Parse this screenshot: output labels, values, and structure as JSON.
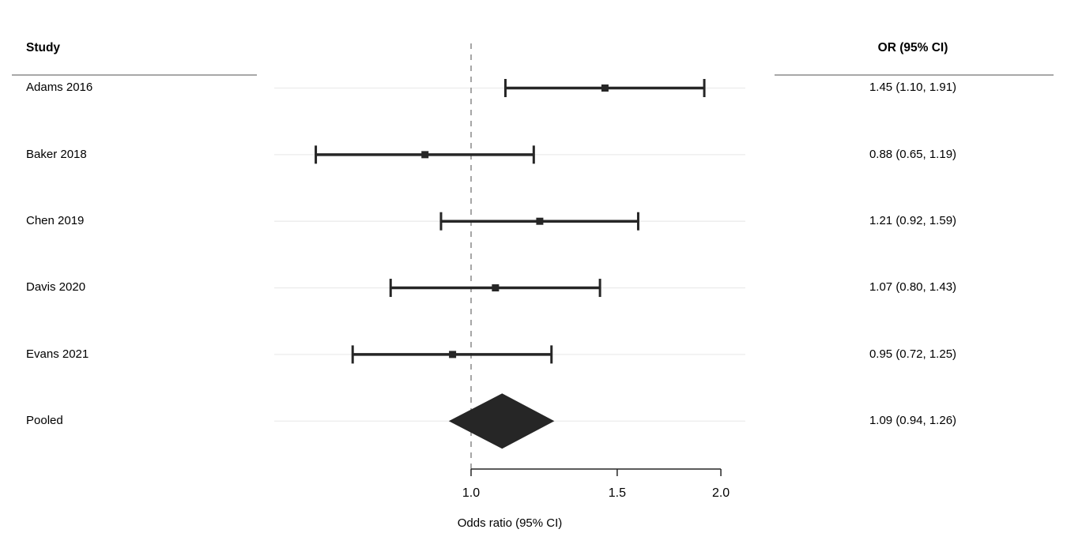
{
  "chart_data": {
    "type": "forest",
    "xlabel": "Odds ratio (95% CI)",
    "x_scale": "log",
    "x_range": [
      1.0,
      2.0
    ],
    "reference_line": 1.0,
    "x_ticks": [
      {
        "value": 1.0,
        "label": "1.0"
      },
      {
        "value": 1.5,
        "label": "1.5"
      },
      {
        "value": 2.0,
        "label": "2.0"
      }
    ],
    "columns": {
      "study_header": "Study",
      "or_header": "OR (95% CI)"
    },
    "rows": [
      {
        "study": "Adams 2016",
        "type": "study",
        "or": 1.45,
        "ci_low": 1.1,
        "ci_high": 1.91,
        "or_label": "1.45 (1.10, 1.91)"
      },
      {
        "study": "Baker 2018",
        "type": "study",
        "or": 0.88,
        "ci_low": 0.65,
        "ci_high": 1.19,
        "or_label": "0.88 (0.65, 1.19)"
      },
      {
        "study": "Chen 2019",
        "type": "study",
        "or": 1.21,
        "ci_low": 0.92,
        "ci_high": 1.59,
        "or_label": "1.21 (0.92, 1.59)"
      },
      {
        "study": "Davis 2020",
        "type": "study",
        "or": 1.07,
        "ci_low": 0.8,
        "ci_high": 1.43,
        "or_label": "1.07 (0.80, 1.43)"
      },
      {
        "study": "Evans 2021",
        "type": "study",
        "or": 0.95,
        "ci_low": 0.72,
        "ci_high": 1.25,
        "or_label": "0.95 (0.72, 1.25)"
      },
      {
        "study": "Pooled",
        "type": "pooled",
        "or": 1.09,
        "ci_low": 0.94,
        "ci_high": 1.26,
        "or_label": "1.09 (0.94, 1.26)"
      }
    ],
    "colors": {
      "ci": "#262626",
      "diamond": "#262626",
      "grid": "#ececec",
      "reference": "#909090",
      "rule": "#a8a8a8",
      "text": "#000000"
    }
  }
}
